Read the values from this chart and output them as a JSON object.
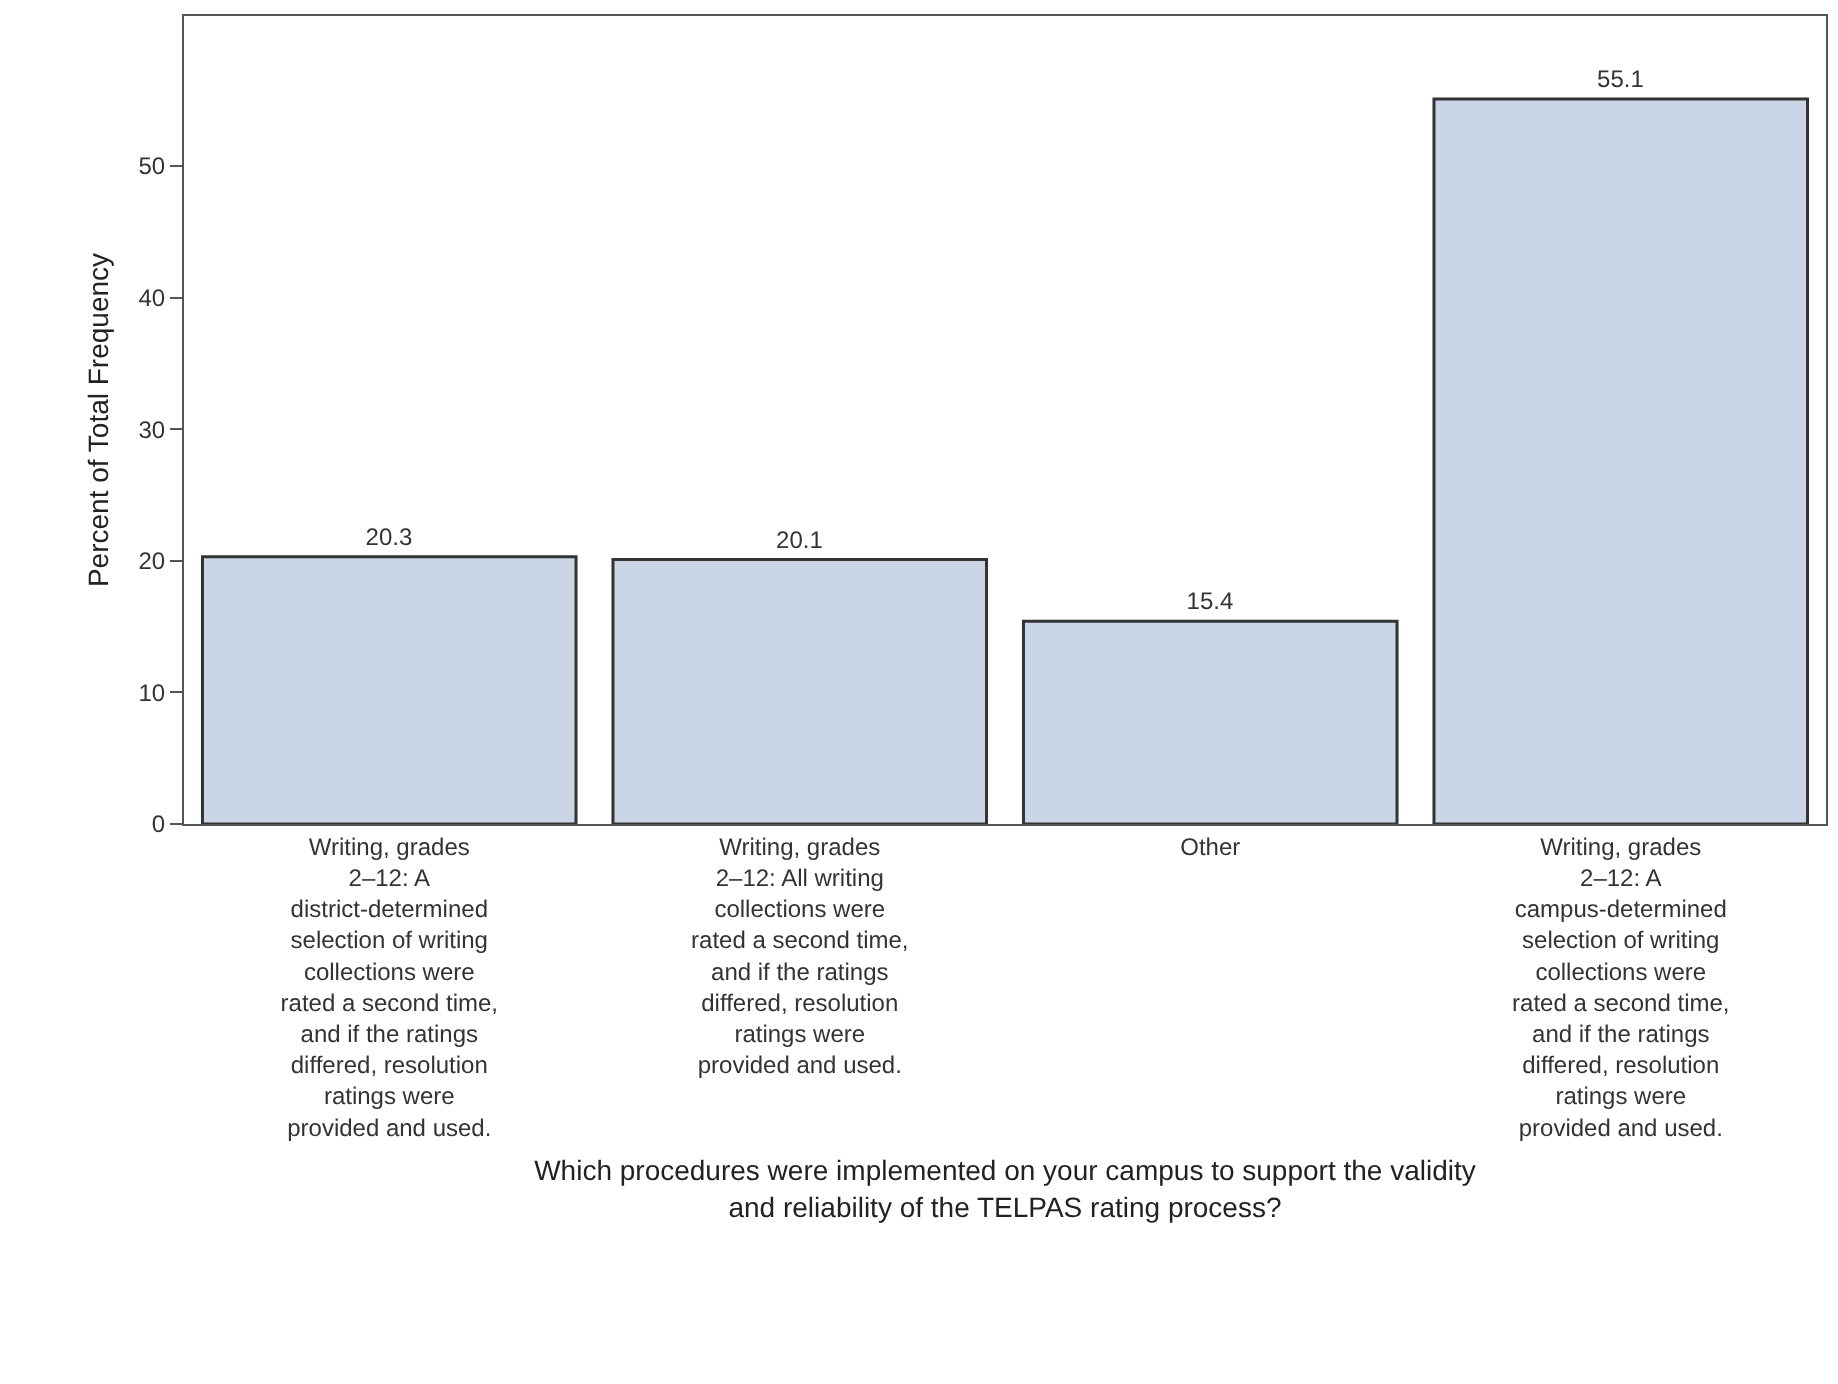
{
  "chart_data": {
    "type": "bar",
    "xlabel": "Which procedures were implemented on your campus to support the validity and reliability of the TELPAS rating process?",
    "ylabel": "Percent of Total Frequency",
    "categories": [
      "Writing, grades 2–12: A district-determined selection of writing collections were rated a second time, and if the ratings differed, resolution ratings were provided and used.",
      "Writing, grades 2–12: All writing collections were rated a second time, and if the ratings differed, resolution ratings were provided and used.",
      "Other",
      "Writing, grades 2–12: A campus-determined selection of writing collections were rated a second time, and if the ratings differed, resolution ratings were provided and used."
    ],
    "values": [
      20.3,
      20.1,
      15.4,
      55.1
    ],
    "color": "#cad5e5",
    "ylim": [
      0,
      61.4
    ],
    "yticks": [
      0,
      10,
      20,
      30,
      40,
      50
    ],
    "data_labels": true,
    "grid": false,
    "legend": false
  }
}
